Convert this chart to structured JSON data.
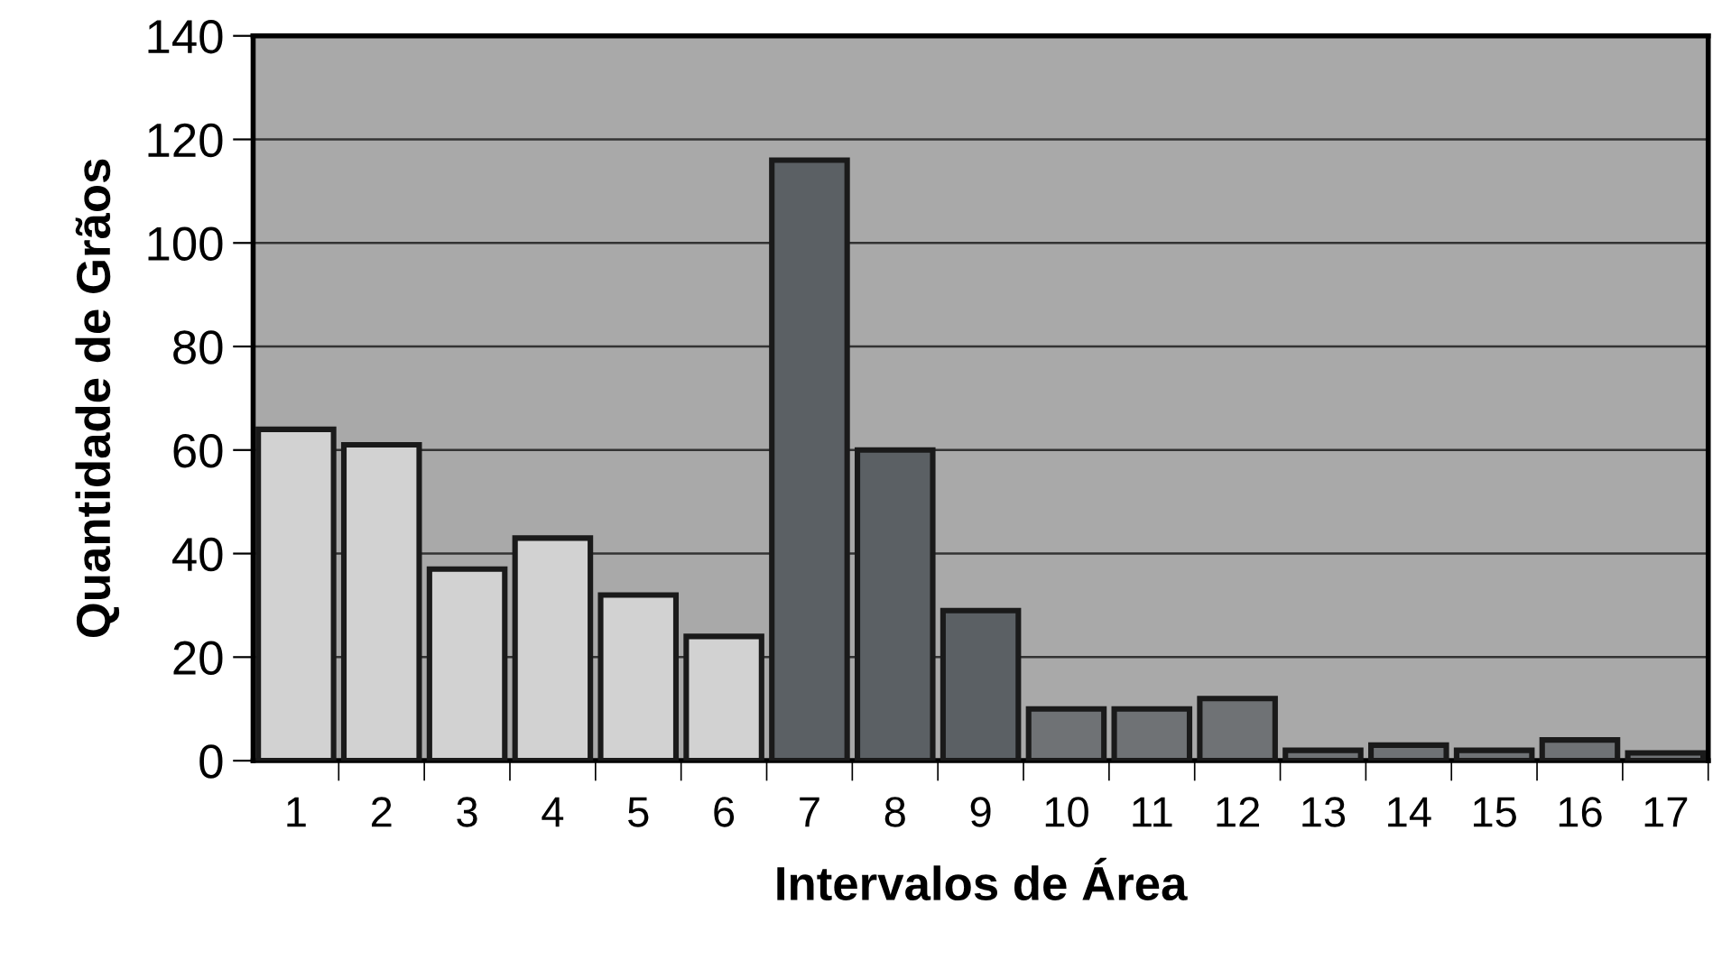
{
  "chart_data": {
    "type": "bar",
    "xlabel": "Intervalos de Área",
    "ylabel": "Quantidade de Grãos",
    "categories": [
      "1",
      "2",
      "3",
      "4",
      "5",
      "6",
      "7",
      "8",
      "9",
      "10",
      "11",
      "12",
      "13",
      "14",
      "15",
      "16",
      "17"
    ],
    "values": [
      64,
      61,
      37,
      43,
      32,
      24,
      116,
      60,
      29,
      10,
      10,
      12,
      2,
      3,
      2,
      4,
      1.5
    ],
    "colors": [
      "#d2d2d2",
      "#d2d2d2",
      "#d2d2d2",
      "#d2d2d2",
      "#d2d2d2",
      "#d2d2d2",
      "#5b6064",
      "#5b6064",
      "#5b6064",
      "#6f7275",
      "#6f7275",
      "#6f7275",
      "#6f7275",
      "#6f7275",
      "#6f7275",
      "#6f7275",
      "#6f7275"
    ],
    "ylim": [
      0,
      140
    ],
    "yticks": [
      0,
      20,
      40,
      60,
      80,
      100,
      120,
      140
    ],
    "grid": "y"
  }
}
